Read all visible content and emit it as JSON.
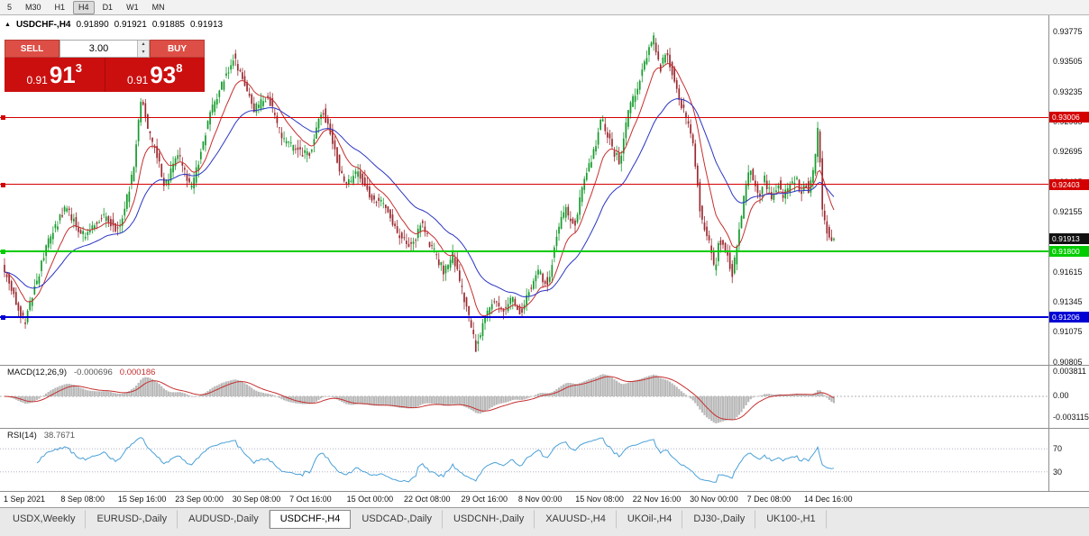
{
  "toolbar": {
    "timeframes": [
      "5",
      "M30",
      "H1",
      "H4",
      "D1",
      "W1",
      "MN"
    ],
    "active": "H4"
  },
  "icons": {
    "collapse": "▲",
    "lot_up": "▴",
    "lot_down": "▾"
  },
  "chart_header": {
    "symbol": "USDCHF-,H4",
    "open": "0.91890",
    "high": "0.91921",
    "low": "0.91885",
    "close": "0.91913"
  },
  "trade_panel": {
    "sell_label": "SELL",
    "buy_label": "BUY",
    "lot_value": "3.00",
    "bid": "0.91913",
    "ask": "0.91938",
    "bid_display": {
      "prefix": "0.91",
      "big": "91",
      "sup": "3"
    },
    "ask_display": {
      "prefix": "0.91",
      "big": "93",
      "sup": "8"
    }
  },
  "price_axis": {
    "labels": [
      "0.93775",
      "0.93505",
      "0.93235",
      "0.92965",
      "0.92695",
      "0.92425",
      "0.92155",
      "0.91885",
      "0.91615",
      "0.91345",
      "0.91075",
      "0.90805"
    ],
    "current": {
      "label": "0.91913",
      "price": 0.91913,
      "bg": "#111111",
      "fg": "#ffffff"
    }
  },
  "hlines": [
    {
      "name": "resistance-upper",
      "label": "0.93006",
      "price": 0.93006,
      "color": "#d40000",
      "thickness": 1
    },
    {
      "name": "resistance-lower",
      "label": "0.92403",
      "price": 0.92403,
      "color": "#d40000",
      "thickness": 1
    },
    {
      "name": "support-green",
      "label": "0.91800",
      "price": 0.918,
      "color": "#00cc00",
      "thickness": 2
    },
    {
      "name": "support-blue",
      "label": "0.91206",
      "price": 0.91206,
      "color": "#0000d4",
      "thickness": 2
    }
  ],
  "macd_panel": {
    "title": "MACD(12,26,9)",
    "value": "-0.000696",
    "signal": "0.000186",
    "axis_labels": [
      "0.003811",
      "0.00",
      "-0.003115"
    ]
  },
  "rsi_panel": {
    "title": "RSI(14)",
    "value": "38.7671",
    "axis_labels": [
      "70",
      "30"
    ],
    "levels": [
      70,
      30
    ]
  },
  "time_axis": {
    "labels": [
      "1 Sep 2021",
      "8 Sep 08:00",
      "15 Sep 16:00",
      "23 Sep 00:00",
      "30 Sep 08:00",
      "7 Oct 16:00",
      "15 Oct 00:00",
      "22 Oct 08:00",
      "29 Oct 16:00",
      "8 Nov 00:00",
      "15 Nov 08:00",
      "22 Nov 16:00",
      "30 Nov 00:00",
      "7 Dec 08:00",
      "14 Dec 16:00"
    ]
  },
  "tabs": [
    "USDX,Weekly",
    "EURUSD-,Daily",
    "AUDUSD-,Daily",
    "USDCHF-,H4",
    "USDCAD-,Daily",
    "USDCNH-,Daily",
    "XAUUSD-,H4",
    "UKOil-,H4",
    "DJ30-,Daily",
    "UK100-,H1"
  ],
  "tabs_active": "USDCHF-,H4",
  "chart_data": {
    "type": "candlestick",
    "title": "USDCHF-,H4",
    "x_range": [
      "1 Sep 2021",
      "16 Dec 2021"
    ],
    "ylim": [
      0.9078,
      0.9392
    ],
    "grid": false,
    "bars": 360,
    "seed": 42,
    "noise": 0.0008,
    "wick": 0.0007,
    "last_bar": {
      "open": 0.9189,
      "high": 0.91921,
      "low": 0.91885,
      "close": 0.91913
    },
    "price_path_anchors": [
      [
        0.0,
        0.9167
      ],
      [
        0.027,
        0.9116
      ],
      [
        0.054,
        0.91856
      ],
      [
        0.076,
        0.92197
      ],
      [
        0.098,
        0.91937
      ],
      [
        0.12,
        0.92116
      ],
      [
        0.141,
        0.91986
      ],
      [
        0.158,
        0.92521
      ],
      [
        0.168,
        0.93209
      ],
      [
        0.177,
        0.92845
      ],
      [
        0.185,
        0.92723
      ],
      [
        0.196,
        0.92375
      ],
      [
        0.212,
        0.92666
      ],
      [
        0.228,
        0.92342
      ],
      [
        0.25,
        0.93023
      ],
      [
        0.266,
        0.93314
      ],
      [
        0.279,
        0.93557
      ],
      [
        0.293,
        0.93274
      ],
      [
        0.304,
        0.93071
      ],
      [
        0.321,
        0.93193
      ],
      [
        0.337,
        0.92828
      ],
      [
        0.353,
        0.92707
      ],
      [
        0.37,
        0.92666
      ],
      [
        0.386,
        0.93071
      ],
      [
        0.397,
        0.92828
      ],
      [
        0.413,
        0.92383
      ],
      [
        0.429,
        0.92504
      ],
      [
        0.446,
        0.92261
      ],
      [
        0.462,
        0.92221
      ],
      [
        0.478,
        0.91937
      ],
      [
        0.495,
        0.91856
      ],
      [
        0.505,
        0.92059
      ],
      [
        0.516,
        0.91856
      ],
      [
        0.533,
        0.91613
      ],
      [
        0.543,
        0.91775
      ],
      [
        0.56,
        0.91289
      ],
      [
        0.571,
        0.90933
      ],
      [
        0.582,
        0.91208
      ],
      [
        0.592,
        0.9137
      ],
      [
        0.603,
        0.91249
      ],
      [
        0.614,
        0.9137
      ],
      [
        0.625,
        0.91249
      ],
      [
        0.636,
        0.91451
      ],
      [
        0.647,
        0.91613
      ],
      [
        0.658,
        0.91492
      ],
      [
        0.668,
        0.91937
      ],
      [
        0.679,
        0.9218
      ],
      [
        0.69,
        0.92018
      ],
      [
        0.701,
        0.92423
      ],
      [
        0.712,
        0.92666
      ],
      [
        0.723,
        0.9299
      ],
      [
        0.734,
        0.92747
      ],
      [
        0.745,
        0.92585
      ],
      [
        0.755,
        0.93071
      ],
      [
        0.766,
        0.93274
      ],
      [
        0.777,
        0.93557
      ],
      [
        0.786,
        0.93719
      ],
      [
        0.793,
        0.93436
      ],
      [
        0.801,
        0.93598
      ],
      [
        0.81,
        0.93355
      ],
      [
        0.821,
        0.93071
      ],
      [
        0.832,
        0.92828
      ],
      [
        0.837,
        0.92504
      ],
      [
        0.842,
        0.9214
      ],
      [
        0.853,
        0.91856
      ],
      [
        0.859,
        0.91613
      ],
      [
        0.864,
        0.91897
      ],
      [
        0.875,
        0.91775
      ],
      [
        0.88,
        0.91573
      ],
      [
        0.886,
        0.91856
      ],
      [
        0.897,
        0.92423
      ],
      [
        0.902,
        0.92545
      ],
      [
        0.913,
        0.92302
      ],
      [
        0.918,
        0.92464
      ],
      [
        0.929,
        0.92261
      ],
      [
        0.935,
        0.92423
      ],
      [
        0.94,
        0.92302
      ],
      [
        0.951,
        0.92383
      ],
      [
        0.957,
        0.92464
      ],
      [
        0.962,
        0.92302
      ],
      [
        0.967,
        0.92423
      ],
      [
        0.973,
        0.92342
      ],
      [
        0.978,
        0.92504
      ],
      [
        0.984,
        0.92926
      ],
      [
        0.989,
        0.9218
      ],
      [
        0.995,
        0.91978
      ],
      [
        1.0,
        0.91913
      ]
    ],
    "moving_averages": [
      {
        "type": "ema",
        "period": 12,
        "color": "#c62f2f"
      },
      {
        "type": "ema",
        "period": 34,
        "color": "#2a35c4"
      }
    ],
    "indicators": {
      "macd": {
        "fast": 12,
        "slow": 26,
        "signal": 9,
        "value": -0.000696,
        "signal_value": 0.000186
      },
      "rsi": {
        "period": 14,
        "value": 38.7671,
        "levels": [
          70,
          30
        ]
      }
    },
    "colors": {
      "up": "#159a2c",
      "down": "#9a2a31",
      "macd_hist": "#b9b9b9",
      "macd_signal": "#c62f2f",
      "rsi_line": "#4aa0d8"
    }
  }
}
